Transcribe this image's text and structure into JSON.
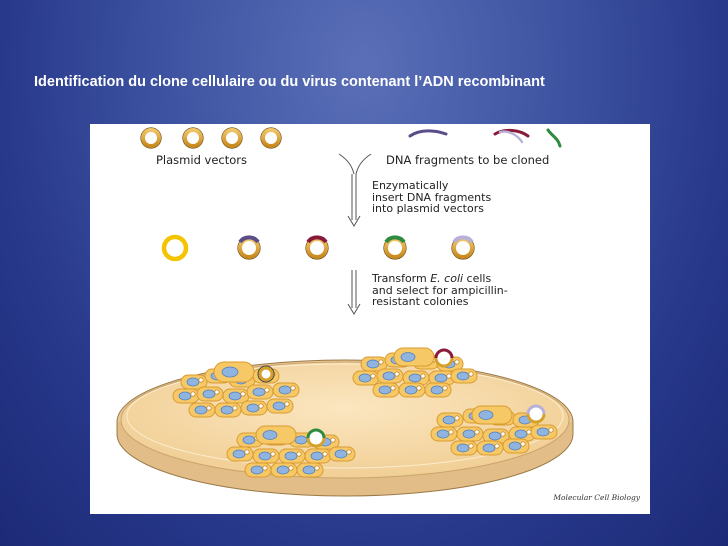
{
  "slide": {
    "title": "Identification du clone cellulaire ou du virus contenant l’ADN recombinant"
  },
  "figure": {
    "labels": {
      "plasmid_vectors": "Plasmid vectors",
      "dna_fragments": "DNA fragments to be cloned"
    },
    "steps": [
      {
        "line1": "Enzymatically",
        "line2": "insert DNA fragments",
        "line3": "into plasmid vectors"
      },
      {
        "line1a": "Transform ",
        "line1_italic": "E. coli",
        "line1b": " cells",
        "line2": "and select for ampicillin-",
        "line3": "resistant colonies"
      }
    ],
    "credit": "Molecular Cell Biology",
    "colors": {
      "plasmid_ring": "#e3a92c",
      "empty_vector": "#f5c400",
      "fragment_purple": "#5a4d8a",
      "fragment_maroon": "#8a1a3a",
      "fragment_green": "#2e8b3f",
      "fragment_lavender": "#b8b0d8",
      "agar": "#f7ddb0",
      "cell": "#f5c56a",
      "dna_blob": "#7aa7d8"
    }
  }
}
